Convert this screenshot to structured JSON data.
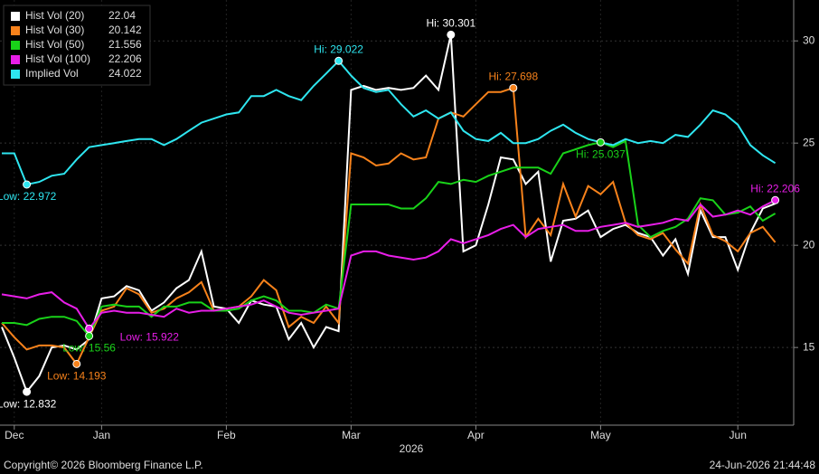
{
  "chart_data": {
    "type": "line",
    "categories": [
      null,
      "Dec",
      null,
      null,
      null,
      null,
      null,
      null,
      "Jan",
      null,
      null,
      null,
      null,
      null,
      null,
      null,
      null,
      null,
      "Feb",
      null,
      null,
      null,
      null,
      null,
      null,
      null,
      null,
      null,
      "Mar",
      null,
      null,
      null,
      null,
      null,
      null,
      null,
      null,
      null,
      "Apr",
      null,
      null,
      null,
      null,
      null,
      null,
      null,
      null,
      null,
      "May",
      null,
      null,
      null,
      null,
      null,
      null,
      null,
      null,
      null,
      null,
      "Jun",
      null,
      null,
      null
    ],
    "year_label": "2026",
    "ylim": [
      11.2,
      32.0
    ],
    "yticks": [
      15,
      20,
      25,
      30
    ],
    "grid": true,
    "legend": "top-left",
    "series": [
      {
        "name": "Hist Vol (20)",
        "color": "#ffffff",
        "values": [
          16.0,
          14.5,
          12.832,
          13.6,
          15.0,
          15.1,
          14.9,
          15.4,
          17.4,
          17.5,
          18.0,
          17.8,
          16.8,
          17.2,
          17.9,
          18.3,
          19.7,
          17.0,
          16.9,
          16.2,
          17.3,
          17.1,
          17.0,
          15.4,
          16.2,
          15.0,
          16.0,
          15.8,
          27.6,
          27.8,
          27.6,
          27.7,
          27.6,
          27.7,
          28.3,
          27.6,
          30.301,
          19.7,
          20.0,
          22.0,
          24.3,
          24.2,
          23.0,
          23.6,
          19.2,
          21.2,
          21.3,
          21.7,
          20.4,
          20.8,
          21.0,
          20.6,
          20.4,
          19.5,
          20.3,
          18.6,
          21.7,
          20.4,
          20.4,
          18.8,
          20.6,
          21.8,
          22.04
        ],
        "value_labels": [
          null,
          null,
          "Low: 12.832",
          null,
          null,
          null,
          null,
          null,
          null,
          null,
          null,
          null,
          null,
          null,
          null,
          null,
          null,
          null,
          null,
          null,
          null,
          null,
          null,
          null,
          null,
          null,
          null,
          null,
          null,
          null,
          null,
          null,
          null,
          null,
          null,
          null,
          "Hi: 30.301",
          null,
          null,
          null,
          null,
          null,
          null,
          null,
          null,
          null,
          null,
          null,
          null,
          null,
          null,
          null,
          null,
          null,
          null,
          null,
          null,
          null,
          null,
          null,
          null,
          null,
          null
        ]
      },
      {
        "name": "Hist Vol (30)",
        "color": "#f7821b",
        "values": [
          16.2,
          15.5,
          14.9,
          15.1,
          15.1,
          15.0,
          14.193,
          15.5,
          16.8,
          17.0,
          17.9,
          17.6,
          16.7,
          16.9,
          17.4,
          17.7,
          18.2,
          16.8,
          16.9,
          17.0,
          17.5,
          18.3,
          17.8,
          16.0,
          16.5,
          16.2,
          17.0,
          16.2,
          24.5,
          24.3,
          23.9,
          24.0,
          24.5,
          24.2,
          24.3,
          26.2,
          26.5,
          26.3,
          26.9,
          27.5,
          27.5,
          27.698,
          20.4,
          21.3,
          20.5,
          23.0,
          21.4,
          22.9,
          22.5,
          23.1,
          21.1,
          20.5,
          20.3,
          20.6,
          19.8,
          19.1,
          22.0,
          20.5,
          20.2,
          19.7,
          20.6,
          20.9,
          20.142
        ],
        "value_labels": [
          null,
          null,
          null,
          null,
          null,
          null,
          "Low: 14.193",
          null,
          null,
          null,
          null,
          null,
          null,
          null,
          null,
          null,
          null,
          null,
          null,
          null,
          null,
          null,
          null,
          null,
          null,
          null,
          null,
          null,
          null,
          null,
          null,
          null,
          null,
          null,
          null,
          null,
          null,
          null,
          null,
          null,
          null,
          "Hi: 27.698",
          null,
          null,
          null,
          null,
          null,
          null,
          null,
          null,
          null,
          null,
          null,
          null,
          null,
          null,
          null,
          null,
          null,
          null,
          null,
          null,
          null
        ]
      },
      {
        "name": "Hist Vol (50)",
        "color": "#19d219",
        "values": [
          16.2,
          16.2,
          16.1,
          16.4,
          16.5,
          16.5,
          16.3,
          15.56,
          17.0,
          17.1,
          17.0,
          17.0,
          16.5,
          17.0,
          17.0,
          17.2,
          17.2,
          16.8,
          16.8,
          16.9,
          17.3,
          17.5,
          17.3,
          16.8,
          16.8,
          16.7,
          17.1,
          16.9,
          22.0,
          22.0,
          22.0,
          22.0,
          21.8,
          21.8,
          22.3,
          23.1,
          23.0,
          23.2,
          23.1,
          23.4,
          23.6,
          23.8,
          23.8,
          23.8,
          23.5,
          24.5,
          24.7,
          24.9,
          25.037,
          24.8,
          25.1,
          21.0,
          20.4,
          20.7,
          20.9,
          21.3,
          22.3,
          22.2,
          21.5,
          21.6,
          21.9,
          21.2,
          21.556
        ],
        "value_labels": [
          null,
          null,
          null,
          null,
          null,
          null,
          null,
          "Low: 15.56",
          null,
          null,
          null,
          null,
          null,
          null,
          null,
          null,
          null,
          null,
          null,
          null,
          null,
          null,
          null,
          null,
          null,
          null,
          null,
          null,
          null,
          null,
          null,
          null,
          null,
          null,
          null,
          null,
          null,
          null,
          null,
          null,
          null,
          null,
          null,
          null,
          null,
          null,
          null,
          null,
          "Hi: 25.037",
          null,
          null,
          null,
          null,
          null,
          null,
          null,
          null,
          null,
          null,
          null,
          null,
          null,
          null
        ]
      },
      {
        "name": "Hist Vol (100)",
        "color": "#e81ee8",
        "values": [
          17.6,
          17.5,
          17.4,
          17.6,
          17.7,
          17.2,
          16.9,
          15.922,
          16.7,
          16.8,
          16.7,
          16.7,
          16.6,
          16.5,
          16.9,
          16.7,
          16.8,
          16.8,
          16.9,
          17.0,
          17.1,
          17.3,
          17.0,
          16.7,
          16.6,
          16.7,
          16.8,
          16.9,
          19.5,
          19.7,
          19.7,
          19.5,
          19.4,
          19.3,
          19.4,
          19.7,
          20.3,
          20.1,
          20.3,
          20.5,
          20.8,
          21.0,
          20.4,
          20.8,
          20.9,
          21.0,
          20.7,
          20.7,
          20.9,
          21.0,
          21.1,
          20.9,
          21.0,
          21.1,
          21.3,
          21.2,
          22.0,
          21.4,
          21.5,
          21.7,
          21.5,
          21.9,
          22.206
        ],
        "value_labels": [
          null,
          null,
          null,
          null,
          null,
          null,
          null,
          "Low: 15.922",
          null,
          null,
          null,
          null,
          null,
          null,
          null,
          null,
          null,
          null,
          null,
          null,
          null,
          null,
          null,
          null,
          null,
          null,
          null,
          null,
          null,
          null,
          null,
          null,
          null,
          null,
          null,
          null,
          null,
          null,
          null,
          null,
          null,
          null,
          null,
          null,
          null,
          null,
          null,
          null,
          null,
          null,
          null,
          null,
          null,
          null,
          null,
          null,
          null,
          null,
          null,
          null,
          null,
          null,
          "Hi: 22.206"
        ]
      },
      {
        "name": "Implied Vol",
        "color": "#2ee6f0",
        "values": [
          24.5,
          24.5,
          22.972,
          23.1,
          23.4,
          23.5,
          24.2,
          24.8,
          24.9,
          25.0,
          25.1,
          25.2,
          25.2,
          24.9,
          25.2,
          25.6,
          26.0,
          26.2,
          26.4,
          26.5,
          27.3,
          27.3,
          27.6,
          27.3,
          27.1,
          27.8,
          28.4,
          29.022,
          28.3,
          27.7,
          27.5,
          27.6,
          26.9,
          26.3,
          26.6,
          26.2,
          26.5,
          25.6,
          25.2,
          25.1,
          25.5,
          25.0,
          25.0,
          25.2,
          25.6,
          25.9,
          25.5,
          25.2,
          25.037,
          24.9,
          25.2,
          25.0,
          25.1,
          25.0,
          25.4,
          25.3,
          25.9,
          26.6,
          26.4,
          25.9,
          24.9,
          24.4,
          24.022
        ],
        "value_labels": [
          null,
          null,
          "Low: 22.972",
          null,
          null,
          null,
          null,
          null,
          null,
          null,
          null,
          null,
          null,
          null,
          null,
          null,
          null,
          null,
          null,
          null,
          null,
          null,
          null,
          null,
          null,
          null,
          null,
          "Hi: 29.022",
          null,
          null,
          null,
          null,
          null,
          null,
          null,
          null,
          null,
          null,
          null,
          null,
          null,
          null,
          null,
          null,
          null,
          null,
          null,
          null,
          null,
          null,
          null,
          null,
          null,
          null,
          null,
          null,
          null,
          null,
          null,
          null,
          null,
          null,
          null
        ]
      }
    ],
    "footer_left": "Copyright© 2026 Bloomberg Finance L.P.",
    "footer_right": "24-Jun-2026 21:44:48"
  }
}
